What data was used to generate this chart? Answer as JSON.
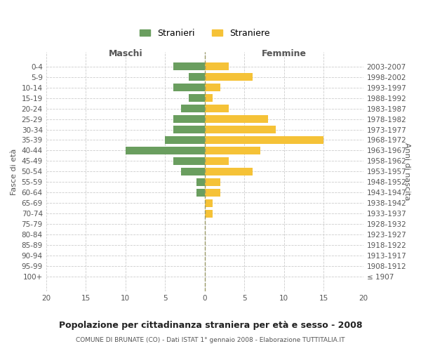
{
  "age_groups": [
    "100+",
    "95-99",
    "90-94",
    "85-89",
    "80-84",
    "75-79",
    "70-74",
    "65-69",
    "60-64",
    "55-59",
    "50-54",
    "45-49",
    "40-44",
    "35-39",
    "30-34",
    "25-29",
    "20-24",
    "15-19",
    "10-14",
    "5-9",
    "0-4"
  ],
  "birth_years": [
    "≤ 1907",
    "1908-1912",
    "1913-1917",
    "1918-1922",
    "1923-1927",
    "1928-1932",
    "1933-1937",
    "1938-1942",
    "1943-1947",
    "1948-1952",
    "1953-1957",
    "1958-1962",
    "1963-1967",
    "1968-1972",
    "1973-1977",
    "1978-1982",
    "1983-1987",
    "1988-1992",
    "1993-1997",
    "1998-2002",
    "2003-2007"
  ],
  "maschi": [
    0,
    0,
    0,
    0,
    0,
    0,
    0,
    0,
    1,
    1,
    3,
    4,
    10,
    5,
    4,
    4,
    3,
    2,
    4,
    2,
    4
  ],
  "femmine": [
    0,
    0,
    0,
    0,
    0,
    0,
    1,
    1,
    2,
    2,
    6,
    3,
    7,
    15,
    9,
    8,
    3,
    1,
    2,
    6,
    3
  ],
  "color_maschi": "#6a9e5f",
  "color_femmine": "#f5c237",
  "title": "Popolazione per cittadinanza straniera per età e sesso - 2008",
  "subtitle": "COMUNE DI BRUNATE (CO) - Dati ISTAT 1° gennaio 2008 - Elaborazione TUTTITALIA.IT",
  "xlabel_left": "Maschi",
  "xlabel_right": "Femmine",
  "ylabel_left": "Fasce di età",
  "ylabel_right": "Anni di nascita",
  "xlim": 20,
  "legend_stranieri": "Stranieri",
  "legend_straniere": "Straniere",
  "bg_color": "#ffffff",
  "grid_color": "#cccccc",
  "tick_color": "#888888",
  "label_color": "#555555"
}
